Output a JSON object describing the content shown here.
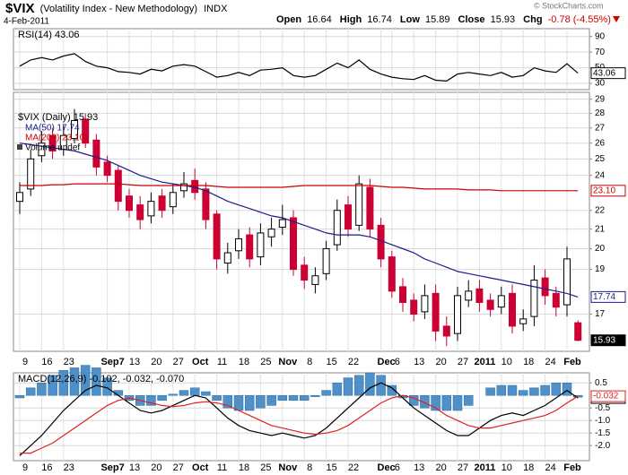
{
  "header": {
    "symbol": "$VIX",
    "name": "(Volatility Index - New Methodology)",
    "exchange": "INDX",
    "date": "4-Feb-2011",
    "open_label": "Open",
    "high_label": "High",
    "low_label": "Low",
    "close_label": "Close",
    "change_label": "Chg",
    "change": "-0.78 (-4.55%)",
    "copyright": "© StockCharts.com"
  },
  "chart_data": [
    {
      "type": "line",
      "title": "RSI(14) 43.06",
      "ylim": [
        22,
        100
      ],
      "yticks": [
        30,
        50,
        70,
        90
      ],
      "grid": true,
      "series": [
        {
          "color": "#000000",
          "values": [
            52,
            60,
            63,
            60,
            65,
            68,
            58,
            52,
            50,
            45,
            44,
            42,
            48,
            46,
            52,
            54,
            52,
            45,
            38,
            40,
            44,
            40,
            47,
            48,
            50,
            40,
            38,
            40,
            48,
            56,
            50,
            60,
            48,
            42,
            38,
            36,
            35,
            40,
            34,
            33,
            42,
            44,
            42,
            40,
            44,
            38,
            40,
            50,
            46,
            44,
            55,
            43.06
          ]
        }
      ]
    },
    {
      "type": "candlestick",
      "title": "$VIX (Daily) 15.93",
      "annotation": "Volume undef",
      "log": true,
      "ylim": [
        15.5,
        29.5
      ],
      "yticks": [
        17,
        19,
        20,
        21,
        22,
        24,
        25,
        26,
        27,
        28,
        29
      ],
      "grid": true,
      "up_color": "#000000",
      "down_color": "#cc0033",
      "categories": [
        "9",
        null,
        "16",
        null,
        "23",
        null,
        null,
        null,
        "Sep7",
        null,
        "13",
        null,
        "20",
        null,
        "27",
        null,
        "Oct",
        null,
        "11",
        null,
        "18",
        null,
        "25",
        null,
        "Nov",
        null,
        "8",
        null,
        "15",
        null,
        "22",
        null,
        null,
        "Dec",
        "6",
        null,
        "13",
        null,
        "20",
        null,
        "27",
        null,
        "2011",
        null,
        "10",
        null,
        "18",
        null,
        "24",
        null,
        "Feb",
        null
      ],
      "open": [
        22.5,
        23.2,
        25.2,
        26.5,
        25.6,
        26.3,
        27.6,
        26.2,
        24.8,
        24.3,
        22.8,
        22.3,
        21.7,
        22.8,
        22.2,
        23.1,
        23.7,
        23.2,
        21.8,
        19.3,
        19.9,
        20.7,
        19.6,
        20.6,
        21.1,
        21.6,
        19.2,
        18.3,
        18.8,
        20.2,
        22.3,
        21.2,
        23.3,
        21.2,
        19.6,
        18.2,
        17.6,
        17.1,
        17.9,
        16.5,
        16.2,
        17.6,
        18.1,
        17.6,
        17.3,
        17.9,
        16.6,
        16.9,
        18.6,
        17.9,
        17.4,
        16.64
      ],
      "high": [
        23.6,
        25.6,
        26.8,
        27.0,
        27.2,
        28.3,
        28.0,
        26.6,
        25.2,
        24.6,
        23.2,
        22.8,
        23.0,
        23.2,
        23.5,
        24.2,
        24.4,
        23.6,
        22.0,
        20.3,
        21.0,
        21.1,
        21.3,
        21.6,
        22.3,
        22.0,
        19.6,
        19.1,
        20.4,
        22.6,
        22.8,
        24.0,
        23.8,
        21.6,
        19.9,
        18.6,
        17.9,
        18.3,
        18.3,
        16.9,
        18.2,
        18.5,
        18.5,
        17.9,
        18.2,
        18.3,
        17.2,
        19.2,
        19.0,
        18.2,
        20.1,
        16.74
      ],
      "low": [
        21.8,
        22.8,
        24.8,
        25.0,
        25.2,
        26.0,
        25.7,
        24.0,
        23.6,
        22.0,
        21.6,
        21.0,
        21.3,
        21.6,
        21.8,
        22.7,
        22.6,
        21.0,
        19.0,
        18.8,
        19.5,
        19.1,
        19.2,
        20.1,
        20.7,
        18.7,
        18.1,
        17.9,
        18.5,
        19.9,
        20.6,
        20.9,
        20.6,
        19.1,
        17.7,
        17.1,
        16.7,
        16.8,
        15.9,
        15.7,
        15.9,
        17.3,
        17.1,
        16.9,
        17.0,
        16.2,
        16.3,
        16.5,
        17.4,
        16.9,
        16.9,
        15.89
      ],
      "close": [
        23,
        25,
        26,
        25.5,
        26.5,
        27.5,
        26,
        24.5,
        24,
        22.5,
        22,
        21.5,
        22.5,
        22,
        23,
        23.5,
        23,
        21.5,
        19.5,
        19.8,
        20.5,
        19.5,
        20.8,
        21,
        21.5,
        19,
        18.5,
        18.7,
        20,
        22,
        21,
        23.5,
        21,
        19.5,
        18,
        17.5,
        17,
        17.8,
        16.3,
        16.1,
        17.8,
        18,
        17.5,
        17.2,
        17.8,
        16.5,
        16.8,
        18.5,
        17.8,
        17.3,
        19.5,
        15.93
      ],
      "series": [
        {
          "name": "MA(50) 17.74",
          "color": "#1c1c8c",
          "values": [
            26,
            25.9,
            25.8,
            25.7,
            25.6,
            25.5,
            25.3,
            25.1,
            24.9,
            24.6,
            24.3,
            24.0,
            23.8,
            23.6,
            23.5,
            23.4,
            23.3,
            23.1,
            22.8,
            22.5,
            22.3,
            22.1,
            21.9,
            21.7,
            21.6,
            21.4,
            21.2,
            21.0,
            20.8,
            20.7,
            20.7,
            20.7,
            20.6,
            20.4,
            20.2,
            20.0,
            19.8,
            19.5,
            19.3,
            19.1,
            18.9,
            18.8,
            18.7,
            18.6,
            18.5,
            18.4,
            18.3,
            18.2,
            18.1,
            18.0,
            17.9,
            17.74
          ]
        },
        {
          "name": "MA(200) 23.10",
          "color": "#cc0000",
          "end_label": "23.10",
          "values": [
            23.4,
            23.4,
            23.4,
            23.45,
            23.45,
            23.5,
            23.5,
            23.5,
            23.5,
            23.5,
            23.45,
            23.4,
            23.4,
            23.4,
            23.4,
            23.4,
            23.4,
            23.4,
            23.35,
            23.3,
            23.3,
            23.3,
            23.3,
            23.3,
            23.3,
            23.35,
            23.4,
            23.4,
            23.4,
            23.4,
            23.4,
            23.4,
            23.4,
            23.35,
            23.3,
            23.3,
            23.25,
            23.2,
            23.2,
            23.2,
            23.2,
            23.15,
            23.15,
            23.15,
            23.1,
            23.1,
            23.1,
            23.1,
            23.1,
            23.1,
            23.1,
            23.1
          ]
        }
      ]
    },
    {
      "type": "line",
      "title": "MACD(12,26,9) -0.102, -0.032, -0.070",
      "ylim": [
        -2.6,
        0.9
      ],
      "yticks": [
        0.5,
        -0.5,
        {
          "value": -1,
          "label": "-1.0"
        },
        -1.5,
        {
          "value": -2,
          "label": "-2.0"
        }
      ],
      "grid": true,
      "histogram": {
        "color": "#4f90c8",
        "values": [
          -0.1,
          0.3,
          0.5,
          0.8,
          1.0,
          1.1,
          1.2,
          1.1,
          0.7,
          0.2,
          -0.2,
          -0.4,
          -0.4,
          -0.2,
          0.05,
          0.2,
          0.3,
          0.15,
          -0.2,
          -0.5,
          -0.6,
          -0.6,
          -0.5,
          -0.4,
          -0.2,
          -0.2,
          -0.2,
          -0.05,
          0.2,
          0.5,
          0.7,
          0.8,
          0.9,
          0.8,
          0.4,
          -0.1,
          -0.4,
          -0.5,
          -0.6,
          -0.6,
          -0.6,
          -0.4,
          0.0,
          0.3,
          0.4,
          0.4,
          0.2,
          0.3,
          0.4,
          0.5,
          0.5,
          -0.07
        ]
      },
      "series": [
        {
          "color": "#000000",
          "values": [
            -2.4,
            -2.0,
            -1.6,
            -1.1,
            -0.6,
            -0.2,
            0.2,
            0.4,
            0.3,
            0.0,
            -0.3,
            -0.6,
            -0.7,
            -0.6,
            -0.4,
            -0.2,
            0.0,
            -0.1,
            -0.5,
            -0.9,
            -1.2,
            -1.4,
            -1.5,
            -1.6,
            -1.5,
            -1.6,
            -1.7,
            -1.6,
            -1.3,
            -0.9,
            -0.5,
            -0.1,
            0.3,
            0.5,
            0.3,
            -0.1,
            -0.5,
            -0.8,
            -1.1,
            -1.4,
            -1.6,
            -1.6,
            -1.3,
            -1.0,
            -0.8,
            -0.7,
            -0.8,
            -0.6,
            -0.4,
            -0.1,
            0.2,
            -0.102
          ]
        },
        {
          "color": "#dd2222",
          "values": [
            -2.3,
            -2.3,
            -2.1,
            -1.9,
            -1.6,
            -1.3,
            -1.0,
            -0.7,
            -0.4,
            -0.2,
            -0.1,
            -0.2,
            -0.3,
            -0.4,
            -0.45,
            -0.4,
            -0.3,
            -0.25,
            -0.3,
            -0.4,
            -0.6,
            -0.8,
            -1.0,
            -1.2,
            -1.3,
            -1.4,
            -1.5,
            -1.55,
            -1.5,
            -1.4,
            -1.2,
            -0.9,
            -0.6,
            -0.3,
            -0.1,
            0.0,
            -0.1,
            -0.3,
            -0.5,
            -0.8,
            -1.0,
            -1.2,
            -1.3,
            -1.3,
            -1.2,
            -1.1,
            -1.0,
            -0.9,
            -0.8,
            -0.6,
            -0.3,
            -0.032
          ]
        }
      ]
    }
  ]
}
